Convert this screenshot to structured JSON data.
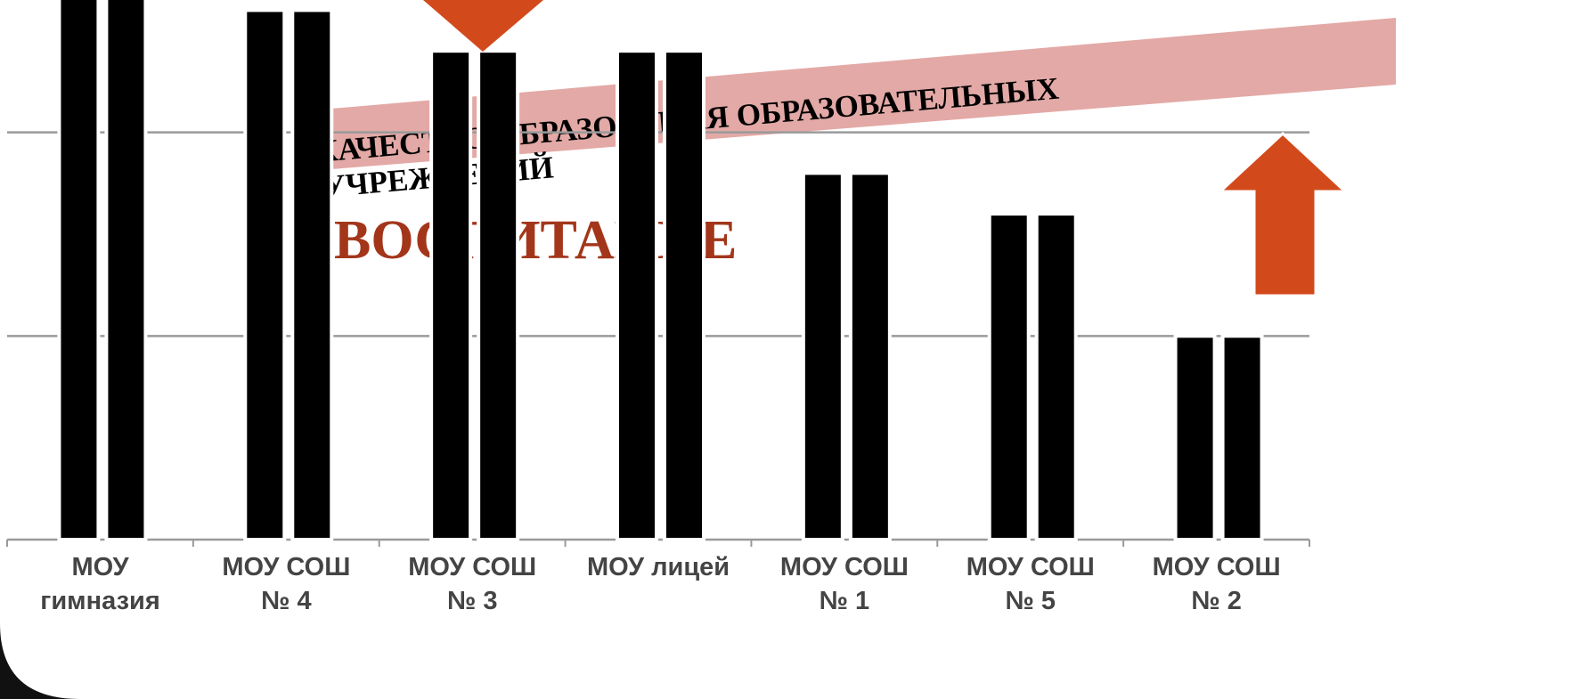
{
  "chart_data": {
    "type": "bar",
    "categories": [
      "МОУ\nгимназия",
      "МОУ СОШ\n№ 4",
      "МОУ СОШ\n№ 3",
      "МОУ лицей",
      "МОУ СОШ\n№ 1",
      "МОУ СОШ\n№ 5",
      "МОУ СОШ\n№ 2"
    ],
    "series": [
      {
        "color": "#000000",
        "values": [
          2.7,
          2.6,
          2.4,
          2.4,
          1.8,
          1.6,
          1.0
        ]
      },
      {
        "color": "#000000",
        "values": [
          2.7,
          2.6,
          2.4,
          2.4,
          1.8,
          1.6,
          1.0
        ]
      }
    ],
    "ylim": [
      0,
      2.65
    ],
    "yticks": [
      0,
      1,
      2
    ],
    "grid": true,
    "annotations": [
      "КАЧЕСТВО ОБРАЗОВАНИЯ ОБРАЗОВАТЕЛЬНЫХ",
      "УЧРЕЖДЕНИЙ",
      "ВОСПИТАНИЕ"
    ]
  }
}
